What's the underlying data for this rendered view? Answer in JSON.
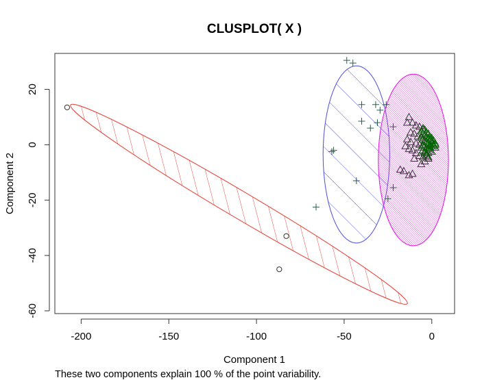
{
  "chart_data": {
    "type": "scatter",
    "title": "CLUSPLOT( X )",
    "xlabel": "Component 1",
    "ylabel": "Component 2",
    "subtitle": "These two components explain 100 % of the point variability.",
    "xlim": [
      -215,
      13
    ],
    "ylim": [
      -61,
      33
    ],
    "xticks": [
      -200,
      -150,
      -100,
      -50,
      0
    ],
    "yticks": [
      -60,
      -40,
      -20,
      0,
      20
    ],
    "colors": {
      "cluster1_ellipse": "#e8453c",
      "cluster2_ellipse": "#5a5adc",
      "cluster3_ellipse": "#e020e0",
      "cluster3_fill": "#f080f0",
      "cluster3_points": "#006400",
      "point_default": "#333333",
      "plus_points": "#2e5a4e"
    },
    "clusters": [
      {
        "id": 1,
        "marker": "circle",
        "ellipse": {
          "cx": -110,
          "cy": -21.5,
          "rx": 102.5,
          "ry": 5,
          "angle_deg": -20.5
        },
        "points": [
          [
            -208,
            13.5
          ],
          [
            -83,
            -33
          ],
          [
            -87,
            -45
          ]
        ]
      },
      {
        "id": 2,
        "marker": "plus",
        "ellipse": {
          "cx": -43,
          "cy": -3.5,
          "rx": 19,
          "ry": 32,
          "angle_deg": 0
        },
        "points": [
          [
            -48.5,
            30.5
          ],
          [
            -45,
            29.5
          ],
          [
            -40,
            14.5
          ],
          [
            -32,
            14.5
          ],
          [
            -29.5,
            12.5
          ],
          [
            -26,
            14.5
          ],
          [
            -22,
            6.5
          ],
          [
            -40,
            8.5
          ],
          [
            -35,
            6
          ],
          [
            -31,
            8
          ],
          [
            -56,
            -2
          ],
          [
            -57,
            -2.5
          ],
          [
            -43,
            -13
          ],
          [
            -66,
            -22.5
          ],
          [
            -25,
            -19.5
          ],
          [
            -22,
            -15.5
          ]
        ]
      },
      {
        "id": 3,
        "marker": "triangle",
        "ellipse": {
          "cx": -10.5,
          "cy": -5.5,
          "rx": 20,
          "ry": 31,
          "angle_deg": 0
        },
        "points": [
          [
            -13,
            10
          ],
          [
            -11,
            8
          ],
          [
            -14,
            8
          ],
          [
            -9,
            7
          ],
          [
            -7,
            6.5
          ],
          [
            -5,
            5.5
          ],
          [
            -12,
            4.5
          ],
          [
            -10,
            4
          ],
          [
            -8,
            3
          ],
          [
            -6,
            2.5
          ],
          [
            -14,
            2
          ],
          [
            -12,
            1
          ],
          [
            -9,
            0.5
          ],
          [
            -7,
            0
          ],
          [
            -5,
            -0.5
          ],
          [
            -15,
            -0.5
          ],
          [
            -13,
            -1.5
          ],
          [
            -11,
            -2
          ],
          [
            -9,
            -3
          ],
          [
            -7,
            -4
          ],
          [
            -5,
            -4.5
          ],
          [
            -4,
            -6
          ],
          [
            -6,
            -7
          ],
          [
            -10,
            -5
          ],
          [
            -18,
            -9
          ],
          [
            -16,
            -9.5
          ],
          [
            -11,
            -10.5
          ],
          [
            -13,
            -11
          ],
          [
            -3,
            -3
          ],
          [
            -2,
            -5
          ]
        ],
        "dense_points": [
          [
            -6,
            5
          ],
          [
            -5,
            4
          ],
          [
            -4,
            3.5
          ],
          [
            -3,
            3
          ],
          [
            -2,
            2.5
          ],
          [
            -1,
            2
          ],
          [
            0,
            1.5
          ],
          [
            -6,
            3
          ],
          [
            -5,
            2
          ],
          [
            -4,
            1.5
          ],
          [
            -3,
            1
          ],
          [
            -2,
            0.5
          ],
          [
            -1,
            0
          ],
          [
            0,
            -0.5
          ],
          [
            1,
            -0.5
          ],
          [
            2,
            -1
          ],
          [
            -5,
            0
          ],
          [
            -4,
            -0.5
          ],
          [
            -3,
            -1
          ],
          [
            -2,
            -1.5
          ],
          [
            -1,
            -2
          ],
          [
            0,
            -2.5
          ],
          [
            -4,
            -2.5
          ],
          [
            -3,
            -3.5
          ],
          [
            -2,
            -3
          ],
          [
            -1,
            -1
          ],
          [
            0,
            0.5
          ],
          [
            1,
            0
          ],
          [
            2,
            0
          ],
          [
            -3,
            4.5
          ],
          [
            -4,
            5.5
          ],
          [
            -5,
            6
          ],
          [
            -2,
            4
          ],
          [
            -1,
            3
          ],
          [
            0,
            2.5
          ],
          [
            1,
            1.5
          ],
          [
            2,
            0.5
          ],
          [
            -6,
            -1
          ],
          [
            -5,
            -2
          ],
          [
            -4,
            -3
          ],
          [
            -3,
            -4
          ],
          [
            -2,
            -4.5
          ]
        ]
      }
    ]
  }
}
